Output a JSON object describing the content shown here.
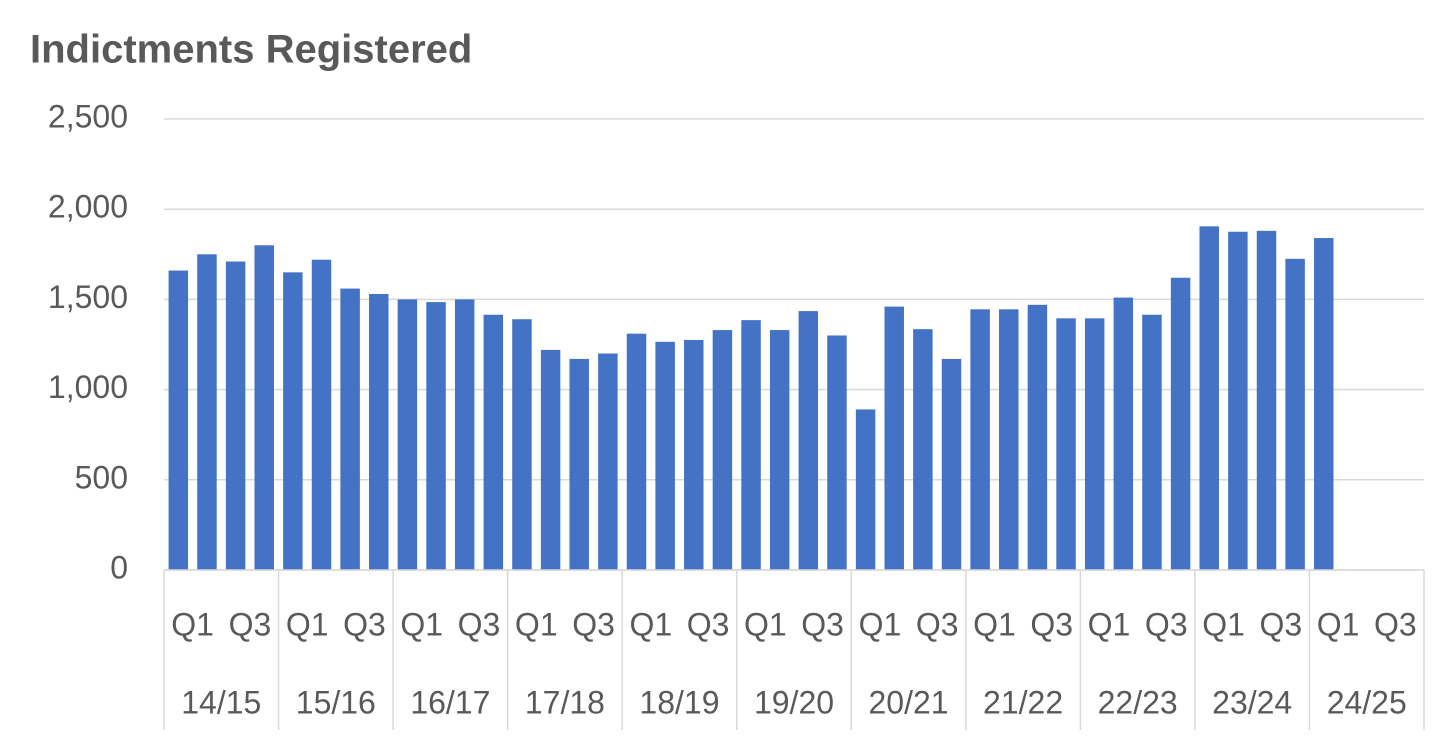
{
  "chart_data": {
    "type": "bar",
    "title": "Indictments Registered",
    "categories": [
      "Q1",
      null,
      "Q3",
      null,
      "Q1",
      null,
      "Q3",
      null,
      "Q1",
      null,
      "Q3",
      null,
      "Q1",
      null,
      "Q3",
      null,
      "Q1",
      null,
      "Q3",
      null,
      "Q1",
      null,
      "Q3",
      null,
      "Q1",
      null,
      "Q3",
      null,
      "Q1",
      null,
      "Q3",
      null,
      "Q1",
      null,
      "Q3",
      null,
      "Q1",
      null,
      "Q3",
      null,
      "Q1",
      null,
      "Q3",
      null
    ],
    "groups": [
      "14/15",
      "15/16",
      "16/17",
      "17/18",
      "18/19",
      "19/20",
      "20/21",
      "21/22",
      "22/23",
      "23/24",
      "24/25"
    ],
    "values": [
      1660,
      1750,
      1710,
      1800,
      1650,
      1720,
      1560,
      1530,
      1500,
      1485,
      1500,
      1415,
      1390,
      1220,
      1170,
      1200,
      1310,
      1265,
      1275,
      1330,
      1385,
      1330,
      1435,
      1300,
      890,
      1460,
      1335,
      1170,
      1445,
      1445,
      1470,
      1395,
      1395,
      1510,
      1415,
      1620,
      1905,
      1875,
      1880,
      1725,
      1840,
      null,
      null,
      null
    ],
    "color": "#4472c4",
    "ylim": [
      0,
      2500
    ],
    "yticks": [
      0,
      {
        "value": 500,
        "label": "500"
      },
      {
        "value": 1000,
        "label": "1,000"
      },
      {
        "value": 1500,
        "label": "1,500"
      },
      {
        "value": 2000,
        "label": "2,000"
      },
      {
        "value": 2500,
        "label": "2,500"
      }
    ],
    "grid": true
  }
}
